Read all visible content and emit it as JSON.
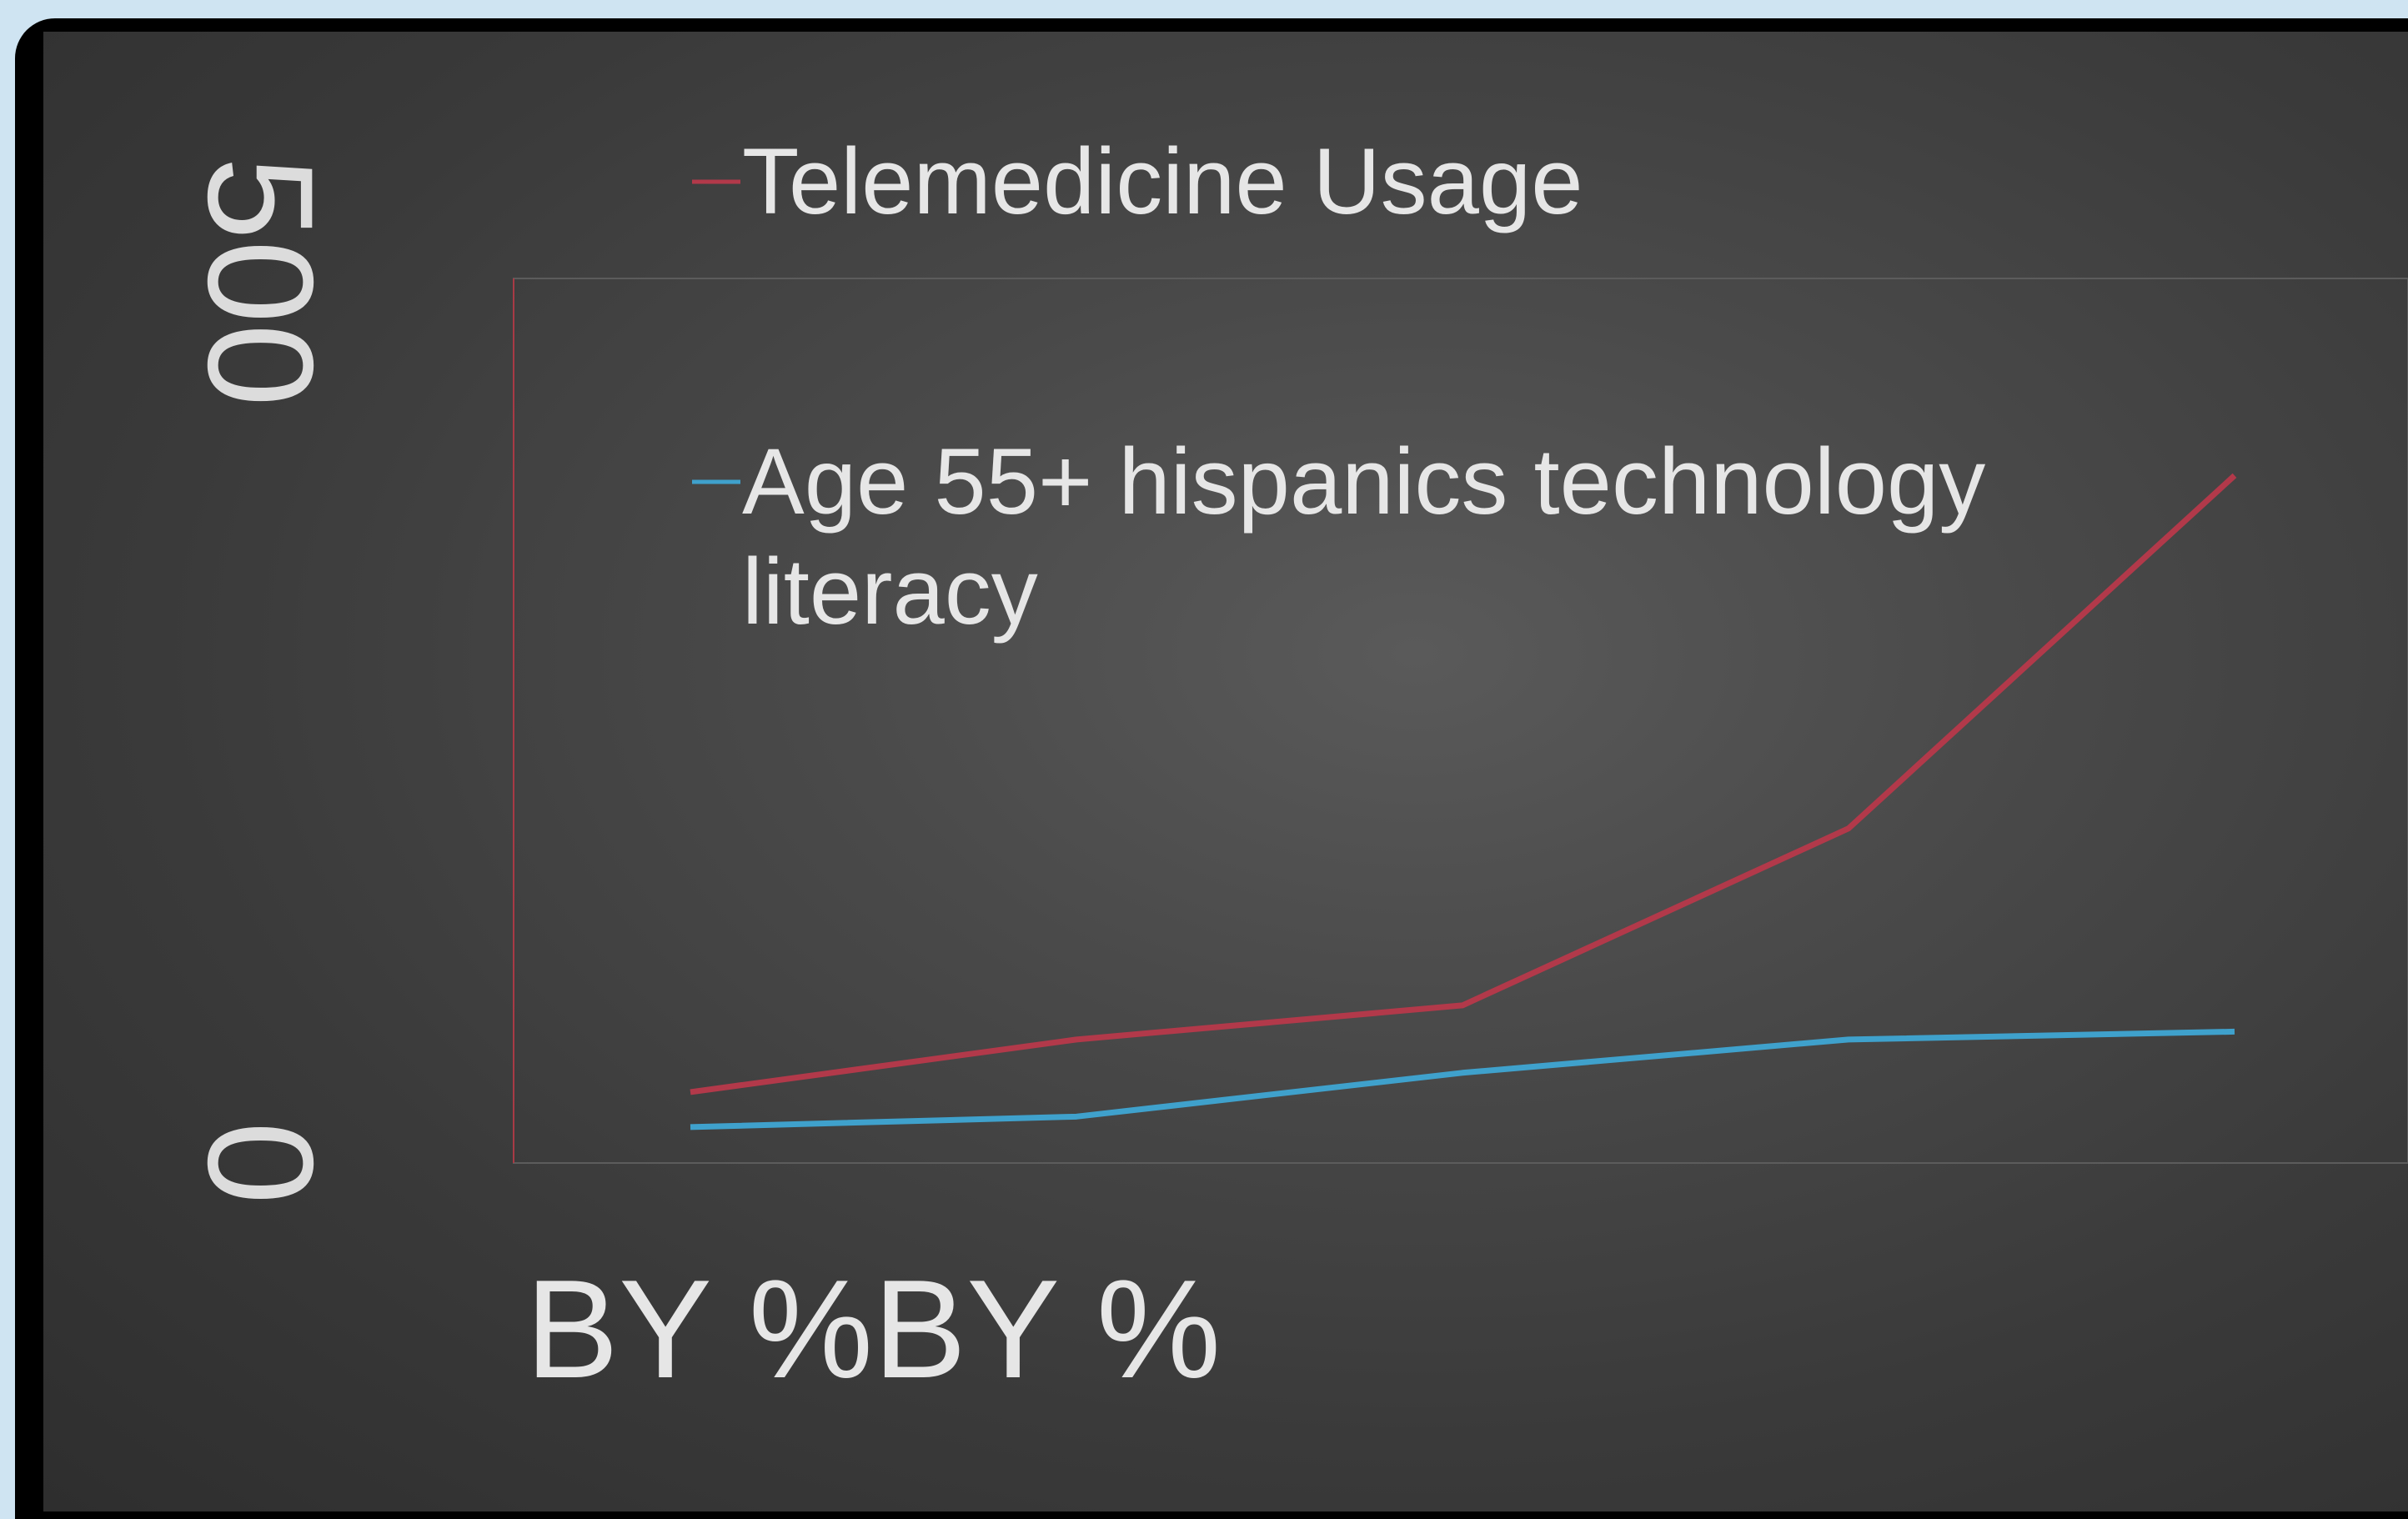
{
  "chart_data": {
    "type": "line",
    "x": [
      1,
      2,
      3,
      4,
      5
    ],
    "series": [
      {
        "name": "Telemedicine Usage",
        "color": "#b2394a",
        "values": [
          21,
          81,
          120,
          322,
          725
        ]
      },
      {
        "name": "Age 55+ hispanics technology literacy",
        "color": "#3fa1cc",
        "values": [
          -19,
          -7,
          43,
          81,
          90
        ]
      }
    ],
    "yticks": [
      "500",
      "0"
    ],
    "xlabel": "BY %BY %",
    "ylim": [
      -60,
      950
    ],
    "grid": false,
    "legend_placement": "top-left"
  }
}
